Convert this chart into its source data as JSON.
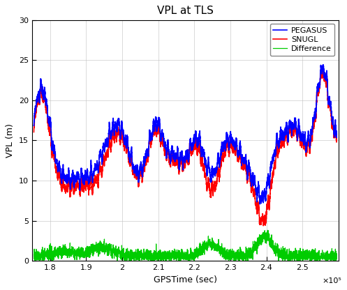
{
  "title": "VPL at TLS",
  "xlabel": "GPSTime (sec)",
  "ylabel": "VPL (m)",
  "xlim": [
    175000.0,
    260000.0
  ],
  "ylim": [
    0,
    30
  ],
  "xticks": [
    180000.0,
    190000.0,
    200000.0,
    210000.0,
    220000.0,
    230000.0,
    240000.0,
    250000.0
  ],
  "xticklabels": [
    "1.8",
    "1.9",
    "2",
    "2.1",
    "2.2",
    "2.3",
    "2.4",
    "2.5"
  ],
  "yticks": [
    0,
    5,
    10,
    15,
    20,
    25,
    30
  ],
  "x_scale_label": "×10⁵",
  "pegasus_color": "#0000FF",
  "snugl_color": "#FF0000",
  "diff_color": "#00CC00",
  "bg_color": "#FFFFFF",
  "legend_labels": [
    "PEGASUS",
    "SNUGL",
    "Difference"
  ],
  "linewidth_main": 1.2,
  "linewidth_diff": 0.9,
  "seed": 42
}
